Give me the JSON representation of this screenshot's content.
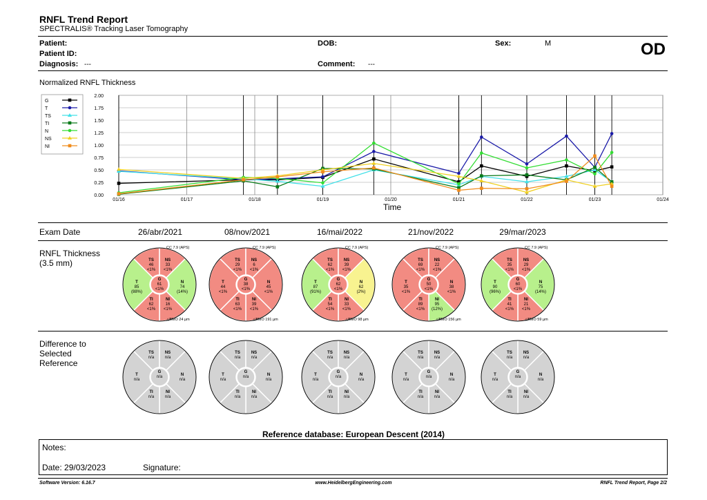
{
  "header": {
    "title": "RNFL Trend Report",
    "subtitle": "SPECTRALIS® Tracking Laser Tomography",
    "eye": "OD"
  },
  "patient": {
    "patient_label": "Patient:",
    "patient_id_label": "Patient ID:",
    "diagnosis_label": "Diagnosis:",
    "diagnosis_value": "---",
    "dob_label": "DOB:",
    "comment_label": "Comment:",
    "comment_value": "---",
    "sex_label": "Sex:",
    "sex_value": "M"
  },
  "chart_section_title": "Normalized RNFL Thickness",
  "chart_data": {
    "type": "line",
    "xlabel": "Time",
    "ylabel": "",
    "ylim": [
      0,
      2.0
    ],
    "yticks": [
      "2.00",
      "1.75",
      "1.50",
      "1.25",
      "1.00",
      "0.75",
      "0.50",
      "0.25",
      "0.00"
    ],
    "xticks": [
      "01/16",
      "01/17",
      "01/18",
      "01/19",
      "01/20",
      "01/21",
      "01/22",
      "01/23",
      "01/24"
    ],
    "grid": true,
    "legend_placement": "top-left",
    "colors": {
      "G": "#000000",
      "T": "#1a1aa8",
      "TS": "#40e0e8",
      "TI": "#0a7a1a",
      "N": "#33dd33",
      "NS": "#f0d020",
      "NI": "#f08c1c"
    },
    "exam_dates": [
      "01/2016",
      "11/2017",
      "05/2018",
      "01/2019",
      "10/2019",
      "01/2021",
      "05/2021",
      "01/2022",
      "08/2022",
      "01/2023",
      "04/2023"
    ],
    "series": [
      {
        "name": "G",
        "values": [
          0.23,
          0.3,
          0.3,
          0.35,
          0.72,
          0.26,
          0.58,
          0.37,
          0.58,
          0.48,
          0.56
        ]
      },
      {
        "name": "T",
        "values": [
          0.48,
          0.3,
          0.32,
          0.36,
          0.87,
          0.43,
          1.16,
          0.62,
          1.18,
          0.55,
          1.23
        ]
      },
      {
        "name": "TS",
        "values": [
          0.47,
          0.32,
          0.27,
          0.17,
          0.5,
          0.2,
          0.37,
          0.26,
          0.37,
          0.5,
          0.26
        ]
      },
      {
        "name": "TI",
        "values": [
          0.01,
          0.28,
          0.16,
          0.53,
          0.52,
          0.14,
          0.38,
          0.4,
          0.3,
          0.55,
          0.26
        ]
      },
      {
        "name": "N",
        "values": [
          0.04,
          0.35,
          0.33,
          0.24,
          1.04,
          0.22,
          0.84,
          0.54,
          0.7,
          0.42,
          0.85
        ]
      },
      {
        "name": "NS",
        "values": [
          0.51,
          0.33,
          0.38,
          0.5,
          0.63,
          0.37,
          0.28,
          0.05,
          0.3,
          0.17,
          0.22
        ]
      },
      {
        "name": "NI",
        "values": [
          0.02,
          0.3,
          0.36,
          0.46,
          0.54,
          0.09,
          0.13,
          0.12,
          0.27,
          0.78,
          0.17
        ]
      }
    ]
  },
  "exam_label": "Exam Date",
  "exam_dates": [
    "26/abr/2021",
    "08/nov/2021",
    "16/mai/2022",
    "21/nov/2022",
    "29/mar/2023"
  ],
  "rnfl_label_1": "RNFL Thickness",
  "rnfl_label_2": "(3.5 mm)",
  "diff_label_1": "Difference to",
  "diff_label_2": "Selected",
  "diff_label_3": "Reference",
  "colors": {
    "red": "#f28b82",
    "green": "#b8f08c",
    "yellow": "#f8f390",
    "gray": "#d3d3d3"
  },
  "exams": [
    {
      "cc": "CC 7.9 (APS)",
      "bmo": "BMO 24 µm",
      "TS": {
        "v": "46",
        "p": "<1%",
        "c": "red"
      },
      "NS": {
        "v": "33",
        "p": "<1%",
        "c": "red"
      },
      "T": {
        "v": "85",
        "p": "(88%)",
        "c": "green"
      },
      "G": {
        "v": "61",
        "p": "<1%",
        "c": "red"
      },
      "N": {
        "v": "74",
        "p": "(14%)",
        "c": "green"
      },
      "TI": {
        "v": "62",
        "p": "<1%",
        "c": "red"
      },
      "NI": {
        "v": "16",
        "p": "<1%",
        "c": "red"
      }
    },
    {
      "cc": "CC 7.9 (APS)",
      "bmo": "BMO 191 µm",
      "TS": {
        "v": "29",
        "p": "<1%",
        "c": "red"
      },
      "NS": {
        "v": "6",
        "p": "<1%",
        "c": "red"
      },
      "T": {
        "v": "44",
        "p": "<1%",
        "c": "red"
      },
      "G": {
        "v": "38",
        "p": "<1%",
        "c": "red"
      },
      "N": {
        "v": "45",
        "p": "<1%",
        "c": "red"
      },
      "TI": {
        "v": "63",
        "p": "<1%",
        "c": "red"
      },
      "NI": {
        "v": "39",
        "p": "<1%",
        "c": "red"
      }
    },
    {
      "cc": "CC 7.9 (APS)",
      "bmo": "BMO 98 µm",
      "TS": {
        "v": "62",
        "p": "<1%",
        "c": "red"
      },
      "NS": {
        "v": "39",
        "p": "<1%",
        "c": "red"
      },
      "T": {
        "v": "87",
        "p": "(91%)",
        "c": "green"
      },
      "G": {
        "v": "62",
        "p": "<1%",
        "c": "red"
      },
      "N": {
        "v": "62",
        "p": "(2%)",
        "c": "yellow"
      },
      "TI": {
        "v": "54",
        "p": "<1%",
        "c": "red"
      },
      "NI": {
        "v": "33",
        "p": "<1%",
        "c": "red"
      }
    },
    {
      "cc": "CC 7.9 (APS)",
      "bmo": "BMO 156 µm",
      "TS": {
        "v": "69",
        "p": "<1%",
        "c": "red"
      },
      "NS": {
        "v": "22",
        "p": "<1%",
        "c": "red"
      },
      "T": {
        "v": "35",
        "p": "<1%",
        "c": "red"
      },
      "G": {
        "v": "50",
        "p": "<1%",
        "c": "red"
      },
      "N": {
        "v": "38",
        "p": "<1%",
        "c": "red"
      },
      "TI": {
        "v": "89",
        "p": "<1%",
        "c": "red"
      },
      "NI": {
        "v": "95",
        "p": "(12%)",
        "c": "green"
      }
    },
    {
      "cc": "CC 7.9 (APS)",
      "bmo": "BMO 59 µm",
      "TS": {
        "v": "35",
        "p": "<1%",
        "c": "red"
      },
      "NS": {
        "v": "29",
        "p": "<1%",
        "c": "red"
      },
      "T": {
        "v": "90",
        "p": "(96%)",
        "c": "green"
      },
      "G": {
        "v": "60",
        "p": "<1%",
        "c": "red"
      },
      "N": {
        "v": "75",
        "p": "(14%)",
        "c": "green"
      },
      "TI": {
        "v": "41",
        "p": "<1%",
        "c": "red"
      },
      "NI": {
        "v": "21",
        "p": "<1%",
        "c": "red"
      }
    }
  ],
  "diff_na": "n/a",
  "reference_db": "Reference database: European Descent (2014)",
  "notes_label": "Notes:",
  "date_label": "Date: 29/03/2023",
  "signature_label": "Signature:",
  "footer": {
    "software": "Software Version: 6.16.7",
    "url": "www.HeidelbergEngineering.com",
    "page": "RNFL Trend Report, Page 2/2"
  }
}
